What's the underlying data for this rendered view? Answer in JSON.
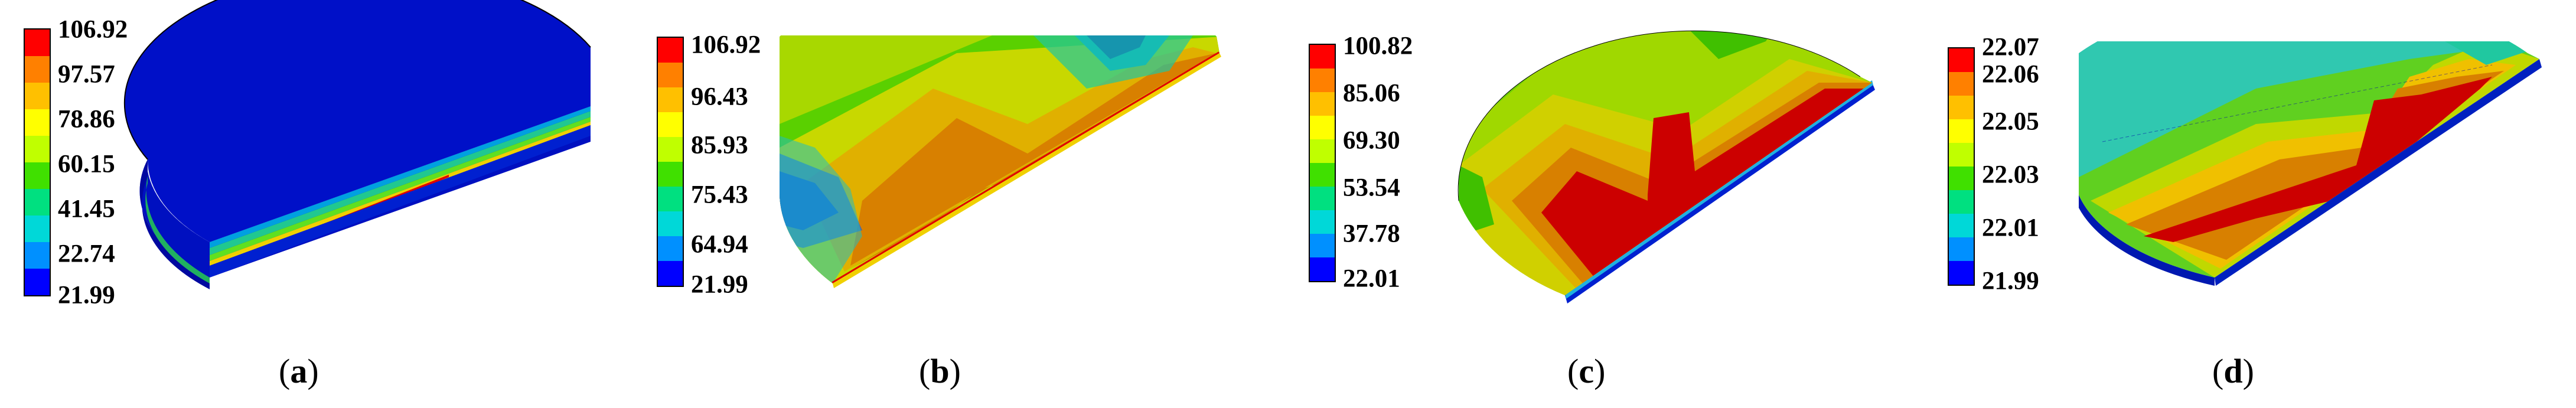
{
  "colors": {
    "legend_bands": [
      "#ff0000",
      "#ff8000",
      "#ffc000",
      "#ffff00",
      "#c0ff00",
      "#40e000",
      "#00e080",
      "#00d8d8",
      "#0090ff",
      "#0000ff"
    ],
    "contour_low": "#0010c8",
    "contour_mid": "#2cc8a0",
    "contour_orange": "#d88000",
    "contour_red": "#cc0000",
    "contour_yellow": "#c8d000"
  },
  "panels": [
    {
      "label_open": "(",
      "label_letter": "a",
      "label_close": ")",
      "colorbar_ticks": [
        "106.92",
        "97.57",
        "78.86",
        "60.15",
        "41.45",
        "22.74",
        "21.99"
      ]
    },
    {
      "label_open": "(",
      "label_letter": "b",
      "label_close": ")",
      "colorbar_ticks": [
        "106.92",
        "96.43",
        "85.93",
        "75.43",
        "64.94",
        "21.99"
      ]
    },
    {
      "label_open": "(",
      "label_letter": "c",
      "label_close": ")",
      "colorbar_ticks": [
        "100.82",
        "85.06",
        "69.30",
        "53.54",
        "37.78",
        "22.01"
      ]
    },
    {
      "label_open": "(",
      "label_letter": "d",
      "label_close": ")",
      "colorbar_ticks": [
        "22.07",
        "22.06",
        "22.05",
        "22.03",
        "22.01",
        "21.99"
      ]
    }
  ]
}
